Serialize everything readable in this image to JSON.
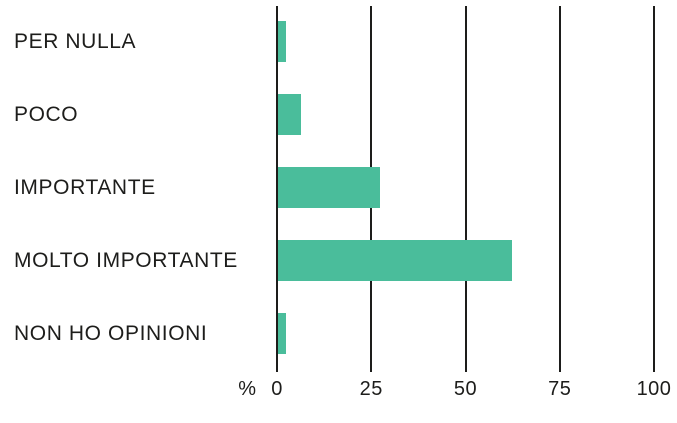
{
  "chart_data": {
    "type": "bar",
    "orientation": "horizontal",
    "title": "",
    "categories": [
      "PER NULLA",
      "POCO",
      "IMPORTANTE",
      "MOLTO IMPORTANTE",
      "NON HO OPINIONI"
    ],
    "values": [
      2,
      6,
      27,
      62,
      2
    ],
    "xlabel": "%",
    "ylabel": "",
    "x_ticks": [
      0,
      25,
      50,
      75,
      100
    ],
    "xlim": [
      0,
      100
    ],
    "grid": true,
    "legend": false,
    "bar_color": "#4abd9b",
    "axis_color": "#1d1d1b",
    "text_color": "#1d1d1b"
  }
}
